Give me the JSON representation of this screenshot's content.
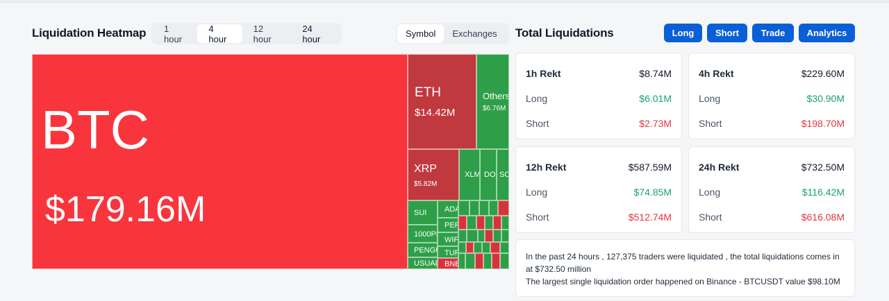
{
  "heatmap": {
    "title": "Liquidation Heatmap",
    "time_tabs": [
      "1 hour",
      "4 hour",
      "12 hour",
      "24 hour"
    ],
    "active_time_tab": "4 hour",
    "mode_tabs": [
      "Symbol",
      "Exchanges"
    ],
    "active_mode_tab": "Symbol",
    "tiles": {
      "btc": {
        "symbol": "BTC",
        "value": "$179.16M"
      },
      "eth": {
        "symbol": "ETH",
        "value": "$14.42M"
      },
      "others": {
        "symbol": "Others",
        "value": "$6.76M"
      },
      "xrp": {
        "symbol": "XRP",
        "value": "$5.82M"
      },
      "xlm": {
        "symbol": "XLM"
      },
      "doge": {
        "symbol": "DO"
      },
      "sol": {
        "symbol": "SO"
      },
      "sui": {
        "symbol": "SUI"
      },
      "pepe1000": {
        "symbol": "1000PE"
      },
      "pengu": {
        "symbol": "PENGU"
      },
      "usual": {
        "symbol": "USUAL"
      },
      "ada": {
        "symbol": "ADA"
      },
      "pep": {
        "symbol": "PEP"
      },
      "wif": {
        "symbol": "WIF"
      },
      "tur": {
        "symbol": "TUR"
      },
      "bnb": {
        "symbol": "BNB"
      }
    }
  },
  "total": {
    "title": "Total Liquidations",
    "buttons": {
      "long": "Long",
      "short": "Short",
      "trade": "Trade",
      "analytics": "Analytics"
    },
    "cards": [
      {
        "title": "1h Rekt",
        "total": "$8.74M",
        "long_label": "Long",
        "long": "$6.01M",
        "short_label": "Short",
        "short": "$2.73M"
      },
      {
        "title": "4h Rekt",
        "total": "$229.60M",
        "long_label": "Long",
        "long": "$30.90M",
        "short_label": "Short",
        "short": "$198.70M"
      },
      {
        "title": "12h Rekt",
        "total": "$587.59M",
        "long_label": "Long",
        "long": "$74.85M",
        "short_label": "Short",
        "short": "$512.74M"
      },
      {
        "title": "24h Rekt",
        "total": "$732.50M",
        "long_label": "Long",
        "long": "$116.42M",
        "short_label": "Short",
        "short": "$616.08M"
      }
    ],
    "summary_line1": "In the past 24 hours , 127,375 traders were liquidated , the total liquidations comes in at $732.50 million",
    "summary_line2": "The largest single liquidation order happened on Binance - BTCUSDT value $98.10M"
  },
  "colors": {
    "long_red": "#f8353c",
    "short_green": "#2e9f48",
    "primary_blue": "#0b5fd6",
    "positive": "#1aa36a",
    "negative": "#e5343f"
  }
}
